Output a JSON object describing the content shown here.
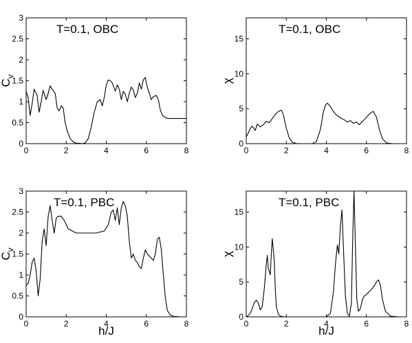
{
  "chart_data": [
    {
      "type": "line",
      "title": "T=0.1, OBC",
      "xlabel": "",
      "ylabel": "C_v",
      "xlim": [
        0,
        8
      ],
      "ylim": [
        0,
        3
      ],
      "xticks": [
        0,
        2,
        4,
        6,
        8
      ],
      "yticks": [
        0,
        0.5,
        1,
        1.5,
        2,
        2.5,
        3
      ],
      "grid": false,
      "series": [
        {
          "x": [
            0,
            0.1,
            0.2,
            0.3,
            0.4,
            0.55,
            0.65,
            0.75,
            0.85,
            1.0,
            1.1,
            1.2,
            1.3,
            1.45,
            1.55,
            1.65,
            1.75,
            1.85,
            1.95,
            2.05,
            2.2,
            2.35,
            2.5,
            2.65,
            2.8,
            2.95,
            3.1,
            3.25,
            3.4,
            3.55,
            3.7,
            3.8,
            3.9,
            4.0,
            4.1,
            4.2,
            4.3,
            4.45,
            4.55,
            4.65,
            4.75,
            4.85,
            4.95,
            5.05,
            5.15,
            5.25,
            5.35,
            5.45,
            5.55,
            5.65,
            5.75,
            5.85,
            5.95,
            6.05,
            6.15,
            6.25,
            6.35,
            6.5,
            6.6,
            6.7,
            6.8,
            6.95,
            7.1,
            7.3,
            7.6,
            8.0
          ],
          "y": [
            1.25,
            1.1,
            0.67,
            0.95,
            1.3,
            1.15,
            0.75,
            1.0,
            1.27,
            1.05,
            1.2,
            1.38,
            1.3,
            1.2,
            0.85,
            0.78,
            0.9,
            0.85,
            0.5,
            0.3,
            0.12,
            0.04,
            0.01,
            0.01,
            0.0,
            0.02,
            0.12,
            0.4,
            0.75,
            1.0,
            1.05,
            0.9,
            1.1,
            1.4,
            1.52,
            1.5,
            1.45,
            1.25,
            1.4,
            1.3,
            1.05,
            1.25,
            1.18,
            1.0,
            1.2,
            1.35,
            1.28,
            1.1,
            1.2,
            1.45,
            1.3,
            1.52,
            1.58,
            1.35,
            1.2,
            1.05,
            1.12,
            1.15,
            1.05,
            0.8,
            0.68,
            0.62,
            0.6,
            0.6,
            0.6,
            0.6
          ]
        }
      ]
    },
    {
      "type": "line",
      "title": "T=0.1, OBC",
      "xlabel": "",
      "ylabel": "χ",
      "xlim": [
        0,
        8
      ],
      "ylim": [
        0,
        18
      ],
      "xticks": [
        0,
        2,
        4,
        6,
        8
      ],
      "yticks": [
        0,
        5,
        10,
        15
      ],
      "grid": false,
      "series": [
        {
          "x": [
            0,
            0.1,
            0.2,
            0.3,
            0.45,
            0.55,
            0.7,
            0.85,
            1.0,
            1.15,
            1.3,
            1.45,
            1.6,
            1.75,
            1.85,
            2.0,
            2.15,
            2.3,
            2.5,
            2.7,
            2.9,
            3.1,
            3.3,
            3.5,
            3.7,
            3.85,
            3.95,
            4.05,
            4.2,
            4.35,
            4.5,
            4.7,
            4.9,
            5.05,
            5.2,
            5.35,
            5.5,
            5.65,
            5.8,
            5.95,
            6.1,
            6.25,
            6.35,
            6.5,
            6.65,
            6.8,
            7.0,
            7.3,
            7.7,
            8.0
          ],
          "y": [
            1.0,
            1.5,
            2.2,
            2.5,
            1.9,
            2.8,
            2.4,
            2.7,
            3.2,
            3.0,
            3.6,
            4.2,
            4.6,
            4.8,
            4.2,
            2.2,
            0.8,
            0.2,
            0.02,
            0.0,
            0.0,
            0.0,
            0.0,
            0.3,
            2.0,
            4.5,
            5.5,
            5.8,
            5.3,
            4.6,
            4.1,
            3.7,
            3.4,
            3.1,
            3.3,
            2.9,
            3.1,
            2.7,
            3.2,
            3.6,
            4.1,
            4.5,
            4.6,
            3.8,
            2.0,
            0.7,
            0.1,
            0.0,
            0.0,
            0.0
          ]
        }
      ]
    },
    {
      "type": "line",
      "title": "T=0.1, PBC",
      "xlabel": "h/J",
      "ylabel": "C_v",
      "xlim": [
        0,
        8
      ],
      "ylim": [
        0,
        3
      ],
      "xticks": [
        0,
        2,
        4,
        6,
        8
      ],
      "yticks": [
        0,
        0.5,
        1,
        1.5,
        2,
        2.5,
        3
      ],
      "grid": false,
      "series": [
        {
          "x": [
            0,
            0.1,
            0.2,
            0.3,
            0.4,
            0.5,
            0.6,
            0.7,
            0.8,
            0.9,
            1.0,
            1.1,
            1.2,
            1.3,
            1.4,
            1.5,
            1.6,
            1.75,
            1.9,
            2.1,
            2.5,
            3.0,
            3.5,
            3.9,
            4.1,
            4.25,
            4.35,
            4.45,
            4.55,
            4.65,
            4.75,
            4.85,
            4.95,
            5.05,
            5.15,
            5.25,
            5.35,
            5.45,
            5.55,
            5.65,
            5.75,
            5.85,
            5.95,
            6.05,
            6.15,
            6.25,
            6.35,
            6.45,
            6.55,
            6.65,
            6.75,
            6.85,
            6.95,
            7.05,
            7.2,
            7.4,
            7.7,
            8.0
          ],
          "y": [
            0.75,
            0.8,
            1.0,
            1.3,
            1.4,
            1.1,
            0.5,
            0.9,
            1.8,
            2.1,
            1.7,
            2.4,
            2.65,
            2.3,
            2.0,
            2.35,
            2.4,
            2.4,
            2.3,
            2.1,
            2.0,
            2.0,
            2.0,
            2.05,
            2.2,
            2.5,
            2.55,
            2.3,
            2.6,
            2.2,
            2.6,
            2.75,
            2.65,
            2.4,
            1.8,
            1.4,
            1.5,
            1.35,
            1.3,
            1.2,
            1.15,
            1.4,
            1.6,
            1.5,
            1.45,
            1.4,
            1.35,
            1.5,
            1.85,
            1.9,
            1.6,
            1.0,
            0.45,
            0.15,
            0.04,
            0.01,
            0.0,
            0.0
          ]
        }
      ]
    },
    {
      "type": "line",
      "title": "T=0.1, PBC",
      "xlabel": "h/J",
      "ylabel": "χ",
      "xlim": [
        0,
        8
      ],
      "ylim": [
        0,
        18
      ],
      "xticks": [
        0,
        2,
        4,
        6,
        8
      ],
      "yticks": [
        0,
        5,
        10,
        15
      ],
      "grid": false,
      "series": [
        {
          "x": [
            0,
            0.1,
            0.2,
            0.3,
            0.4,
            0.5,
            0.6,
            0.7,
            0.8,
            0.9,
            1.0,
            1.05,
            1.1,
            1.2,
            1.25,
            1.3,
            1.4,
            1.45,
            1.5,
            1.6,
            1.7,
            1.85,
            2.0,
            2.5,
            3.0,
            3.5,
            4.0,
            4.2,
            4.35,
            4.45,
            4.55,
            4.62,
            4.7,
            4.78,
            4.85,
            4.95,
            5.05,
            5.15,
            5.25,
            5.32,
            5.38,
            5.45,
            5.52,
            5.6,
            5.7,
            5.8,
            5.9,
            6.0,
            6.1,
            6.2,
            6.3,
            6.4,
            6.5,
            6.6,
            6.7,
            6.8,
            6.95,
            7.2,
            7.6,
            8.0
          ],
          "y": [
            0.0,
            0.2,
            0.5,
            1.2,
            2.0,
            2.4,
            2.0,
            1.0,
            1.5,
            4.0,
            7.5,
            8.8,
            7.0,
            6.0,
            9.0,
            11.2,
            8.0,
            4.0,
            1.5,
            0.4,
            0.1,
            0.02,
            0.0,
            0.0,
            0.0,
            0.0,
            0.0,
            0.5,
            3.5,
            7.5,
            10.3,
            9.0,
            13.0,
            15.3,
            10.0,
            3.0,
            0.5,
            0.1,
            2.0,
            12.0,
            18.0,
            10.0,
            2.5,
            0.8,
            1.2,
            2.5,
            3.0,
            3.2,
            3.5,
            3.8,
            4.1,
            4.5,
            5.0,
            5.3,
            4.5,
            2.5,
            0.8,
            0.1,
            0.0,
            0.0
          ]
        }
      ]
    }
  ]
}
